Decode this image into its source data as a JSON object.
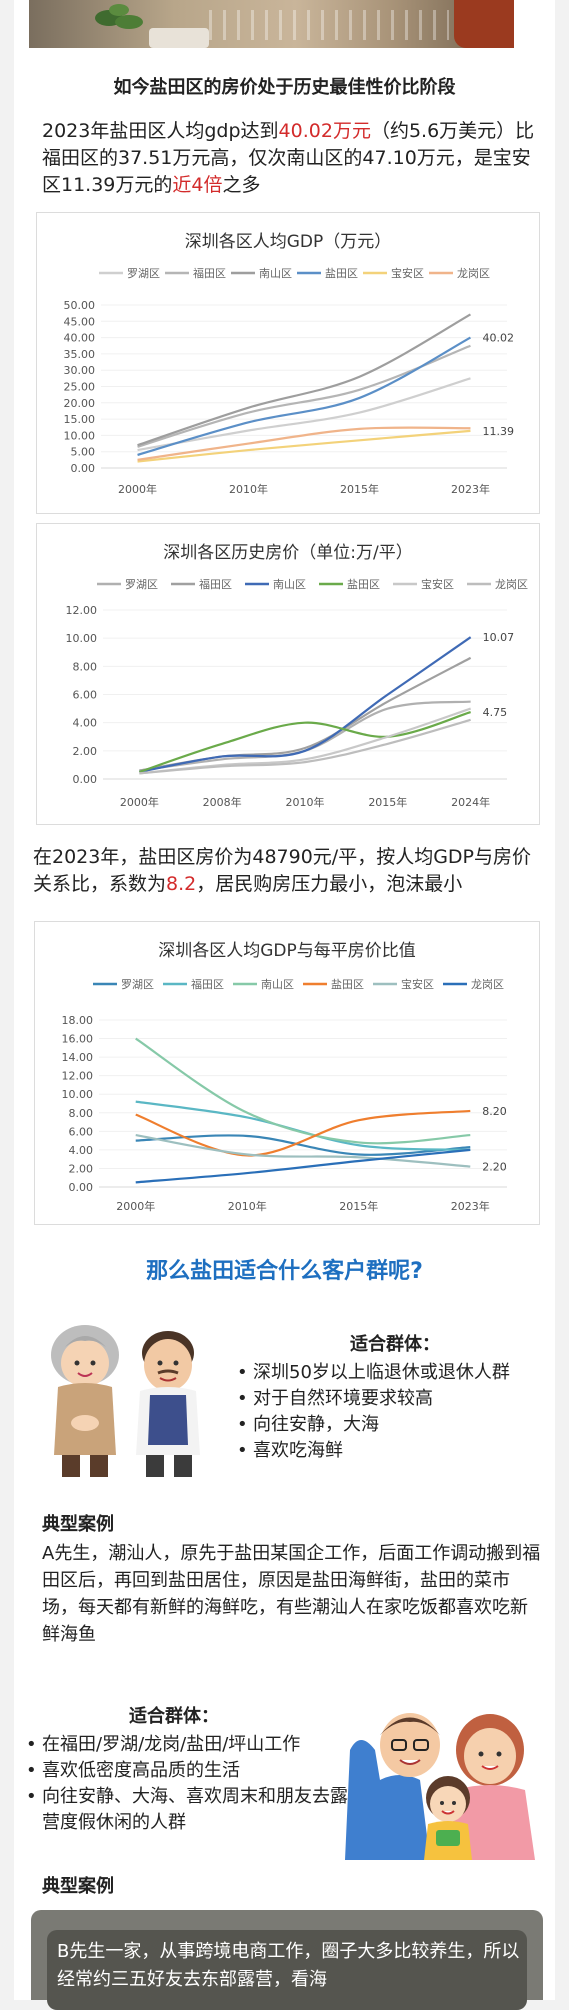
{
  "section1": {
    "title": "如今盐田区的房价处于历史最佳性价比阶段",
    "para": {
      "t1": "2023年盐田区人均gdp达到",
      "h1": "40.02万元",
      "t2": "（约5.6万美元）比福田区的37.51万元高，仅次南山区的47.10万元，是宝安区11.39万元的",
      "h2": "近4倍",
      "t3": "之多"
    }
  },
  "chart_data": [
    {
      "type": "line",
      "title": "深圳各区人均GDP（万元）",
      "categories": [
        "2000年",
        "2010年",
        "2015年",
        "2023年"
      ],
      "yticks": [
        "50.00",
        "45.00",
        "40.00",
        "35.00",
        "30.00",
        "25.00",
        "20.00",
        "15.00",
        "10.00",
        "5.00",
        "0.00"
      ],
      "ylim": [
        0,
        50
      ],
      "legend_position": "top",
      "series": [
        {
          "name": "罗湖区",
          "color": "#cfcfcf",
          "values": [
            5.5,
            11.5,
            17.0,
            27.5
          ]
        },
        {
          "name": "福田区",
          "color": "#b5b5b5",
          "values": [
            6.5,
            17.0,
            24.0,
            37.51
          ]
        },
        {
          "name": "南山区",
          "color": "#9e9e9e",
          "values": [
            7.0,
            18.5,
            28.0,
            47.1
          ]
        },
        {
          "name": "盐田区",
          "color": "#5b8fc7",
          "values": [
            4.0,
            14.0,
            21.5,
            40.02
          ]
        },
        {
          "name": "宝安区",
          "color": "#f3d27a",
          "values": [
            2.0,
            5.5,
            8.5,
            11.39
          ]
        },
        {
          "name": "龙岗区",
          "color": "#f0b48a",
          "values": [
            2.5,
            7.5,
            12.0,
            12.2
          ]
        }
      ],
      "data_labels": [
        "40.02",
        "11.39"
      ]
    },
    {
      "type": "line",
      "title": "深圳各区历史房价（单位:万/平）",
      "categories": [
        "2000年",
        "2008年",
        "2010年",
        "2015年",
        "2024年"
      ],
      "yticks": [
        "12.00",
        "10.00",
        "8.00",
        "6.00",
        "4.00",
        "2.00",
        "0.00"
      ],
      "ylim": [
        0,
        12
      ],
      "legend_position": "top",
      "series": [
        {
          "name": "罗湖区",
          "color": "#b0b0b0",
          "values": [
            0.6,
            1.4,
            2.0,
            5.0,
            5.5
          ]
        },
        {
          "name": "福田区",
          "color": "#a0a0a0",
          "values": [
            0.6,
            1.6,
            2.2,
            5.5,
            8.6
          ]
        },
        {
          "name": "南山区",
          "color": "#3f6ab5",
          "values": [
            0.5,
            1.6,
            2.0,
            6.0,
            10.07
          ]
        },
        {
          "name": "盐田区",
          "color": "#6aaa4a",
          "values": [
            0.5,
            2.5,
            4.0,
            3.0,
            4.75
          ]
        },
        {
          "name": "宝安区",
          "color": "#c8c8c8",
          "values": [
            0.4,
            1.0,
            1.4,
            3.0,
            5.0
          ]
        },
        {
          "name": "龙岗区",
          "color": "#bdbdbd",
          "values": [
            0.4,
            0.9,
            1.2,
            2.5,
            4.2
          ]
        }
      ],
      "data_labels": [
        "10.07",
        "4.75"
      ]
    },
    {
      "type": "line",
      "title": "深圳各区人均GDP与每平房价比值",
      "categories": [
        "2000年",
        "2010年",
        "2015年",
        "2023年"
      ],
      "yticks": [
        "18.00",
        "16.00",
        "14.00",
        "12.00",
        "10.00",
        "8.00",
        "6.00",
        "4.00",
        "2.00",
        "0.00"
      ],
      "ylim": [
        0,
        18
      ],
      "legend_position": "top",
      "series": [
        {
          "name": "罗湖区",
          "color": "#3a86b6",
          "values": [
            5.0,
            5.5,
            3.5,
            4.3
          ]
        },
        {
          "name": "福田区",
          "color": "#5ab7c4",
          "values": [
            9.2,
            7.5,
            4.5,
            4.0
          ]
        },
        {
          "name": "南山区",
          "color": "#86c9a8",
          "values": [
            16.0,
            8.0,
            4.8,
            5.6
          ]
        },
        {
          "name": "盐田区",
          "color": "#ef7e2e",
          "values": [
            7.8,
            3.4,
            7.2,
            8.2
          ]
        },
        {
          "name": "宝安区",
          "color": "#9dbfbf",
          "values": [
            5.6,
            3.5,
            3.2,
            2.2
          ]
        },
        {
          "name": "龙岗区",
          "color": "#2a6fb8",
          "values": [
            0.5,
            1.5,
            2.8,
            4.0
          ]
        }
      ],
      "data_labels": [
        "8.20",
        "2.20"
      ]
    }
  ],
  "section2": {
    "para": {
      "t1": "在2023年，盐田区房价为48790元/平，按人均GDP与房价关系比，系数为",
      "h1": "8.2",
      "t2": "，居民购房压力最小，泡沫最小"
    }
  },
  "section3": {
    "heading": "那么盐田适合什么客户群呢?",
    "group1": {
      "title": "适合群体：",
      "items": [
        "深圳50岁以上临退休或退休人群",
        "对于自然环境要求较高",
        "向往安静，大海",
        "喜欢吃海鲜"
      ]
    },
    "case1": {
      "title": "典型案例",
      "text": "A先生，潮汕人，原先于盐田某国企工作，后面工作调动搬到福田区后，再回到盐田居住，原因是盐田海鲜街，盐田的菜市场，每天都有新鲜的海鲜吃，有些潮汕人在家吃饭都喜欢吃新鲜海鱼"
    },
    "group2": {
      "title": "适合群体：",
      "items": [
        "在福田/罗湖/龙岗/盐田/坪山工作",
        "喜欢低密度高品质的生活",
        "向往安静、大海、喜欢周末和朋友去露营度假休闲的人群"
      ]
    },
    "case2": {
      "title": "典型案例",
      "text": "B先生一家，从事跨境电商工作，圈子大多比较养生，所以经常约三五好友去东部露营，看海"
    }
  }
}
